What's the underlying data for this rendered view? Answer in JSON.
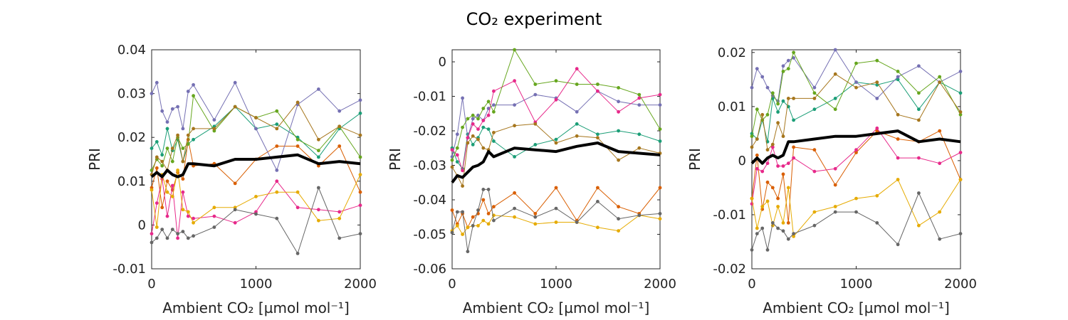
{
  "figure": {
    "title": "CO₂ experiment"
  },
  "chart_data": [
    {
      "type": "line",
      "ylabel": "PRI",
      "xlabel": "Ambient CO₂ [µmol mol⁻¹]",
      "xlim": [
        0,
        2000
      ],
      "ylim": [
        -0.01,
        0.04
      ],
      "xticks": [
        0,
        1000,
        2000
      ],
      "xtick_labels": [
        "0",
        "1000",
        "2000"
      ],
      "yticks": [
        -0.01,
        0,
        0.01,
        0.02,
        0.03,
        0.04
      ],
      "ytick_labels": [
        "-0.01",
        "0",
        "0.01",
        "0.02",
        "0.03",
        "0.04"
      ],
      "x": [
        0,
        50,
        100,
        150,
        200,
        250,
        300,
        350,
        400,
        600,
        800,
        1000,
        1200,
        1400,
        1600,
        1800,
        2000
      ],
      "series": [
        {
          "color": "#1b9e77",
          "values": [
            0.0175,
            0.019,
            0.016,
            0.022,
            0.017,
            0.0195,
            0.0145,
            0.0185,
            0.0195,
            0.0225,
            0.027,
            0.022,
            0.023,
            0.02,
            0.0155,
            0.022,
            0.0255
          ]
        },
        {
          "color": "#d95f02",
          "values": [
            0.0085,
            0.013,
            0.004,
            0.01,
            0.008,
            0.012,
            0.0105,
            0.0195,
            0.0135,
            0.014,
            0.0095,
            0.015,
            0.018,
            0.018,
            0.0135,
            0.018,
            0.0075
          ]
        },
        {
          "color": "#7570b3",
          "values": [
            0.03,
            0.0325,
            0.026,
            0.0235,
            0.0265,
            0.027,
            0.022,
            0.0305,
            0.032,
            0.024,
            0.0325,
            0.022,
            0.0125,
            0.0275,
            0.031,
            0.026,
            0.0285
          ]
        },
        {
          "color": "#e7298a",
          "values": [
            -0.002,
            0.005,
            0.0105,
            0.002,
            0.009,
            -0.003,
            0.0075,
            0.002,
            0.0015,
            0.002,
            0.0005,
            0.003,
            0.01,
            0.004,
            0.0035,
            0.003,
            0.0045
          ]
        },
        {
          "color": "#66a61e",
          "values": [
            0.0125,
            0.015,
            0.0135,
            0.0175,
            0.0145,
            0.02,
            0.0175,
            0.0185,
            0.0295,
            0.0215,
            0.027,
            0.0245,
            0.026,
            0.0195,
            0.017,
            0.0225,
            0.0155
          ]
        },
        {
          "color": "#e6ab02",
          "values": [
            0.008,
            -0.0005,
            0.0115,
            0.0075,
            0.0065,
            0.0125,
            0.0035,
            0.003,
            0.0005,
            0.004,
            0.004,
            0.0065,
            0.0075,
            0.0075,
            0.001,
            0.0015,
            0.0115
          ]
        },
        {
          "color": "#a6761d",
          "values": [
            0.0115,
            0.0155,
            0.0145,
            0.0125,
            0.0175,
            0.0205,
            0.0145,
            0.0205,
            0.022,
            0.022,
            0.027,
            0.0245,
            0.022,
            0.028,
            0.0195,
            0.0225,
            0.0205
          ]
        },
        {
          "color": "#666666",
          "values": [
            -0.004,
            -0.003,
            -0.001,
            -0.003,
            -0.001,
            -0.002,
            -0.0015,
            -0.003,
            -0.0025,
            -0.0005,
            0.0035,
            0.0025,
            0.0015,
            -0.0065,
            0.0085,
            -0.003,
            -0.002
          ]
        },
        {
          "color": "#000000",
          "mean": true,
          "values": [
            0.011,
            0.012,
            0.011,
            0.0125,
            0.0115,
            0.011,
            0.0115,
            0.014,
            0.014,
            0.0135,
            0.015,
            0.015,
            0.0155,
            0.016,
            0.014,
            0.0145,
            0.014
          ]
        }
      ]
    },
    {
      "type": "line",
      "ylabel": "PRI",
      "xlabel": "Ambient CO₂ [µmol mol⁻¹]",
      "xlim": [
        0,
        2000
      ],
      "ylim": [
        -0.06,
        0.0035
      ],
      "xticks": [
        0,
        1000,
        2000
      ],
      "xtick_labels": [
        "0",
        "1000",
        "2000"
      ],
      "yticks": [
        -0.06,
        -0.05,
        -0.04,
        -0.03,
        -0.02,
        -0.01,
        0
      ],
      "ytick_labels": [
        "-0.06",
        "-0.05",
        "-0.04",
        "-0.03",
        "-0.02",
        "-0.01",
        "0"
      ],
      "x": [
        0,
        50,
        100,
        150,
        200,
        250,
        300,
        350,
        400,
        600,
        800,
        1000,
        1200,
        1400,
        1600,
        1800,
        2000
      ],
      "series": [
        {
          "color": "#1b9e77",
          "values": [
            -0.025,
            -0.029,
            -0.031,
            -0.021,
            -0.024,
            -0.022,
            -0.019,
            -0.0195,
            -0.023,
            -0.0275,
            -0.024,
            -0.0225,
            -0.018,
            -0.021,
            -0.02,
            -0.021,
            -0.023
          ]
        },
        {
          "color": "#d95f02",
          "values": [
            -0.043,
            -0.047,
            -0.044,
            -0.048,
            -0.045,
            -0.044,
            -0.04,
            -0.044,
            -0.042,
            -0.038,
            -0.044,
            -0.0365,
            -0.046,
            -0.0365,
            -0.042,
            -0.044,
            -0.0365
          ]
        },
        {
          "color": "#7570b3",
          "values": [
            -0.0275,
            -0.021,
            -0.0105,
            -0.022,
            -0.0165,
            -0.0155,
            -0.017,
            -0.0135,
            -0.0125,
            -0.0125,
            -0.0095,
            -0.0105,
            -0.0145,
            -0.0085,
            -0.0115,
            -0.0125,
            -0.0125
          ]
        },
        {
          "color": "#e7298a",
          "values": [
            -0.0255,
            -0.027,
            -0.0315,
            -0.022,
            -0.018,
            -0.0195,
            -0.017,
            -0.0155,
            -0.0085,
            -0.0055,
            -0.0175,
            -0.011,
            -0.002,
            -0.0085,
            -0.0145,
            -0.0105,
            -0.0095
          ]
        },
        {
          "color": "#66a61e",
          "values": [
            -0.0285,
            -0.025,
            -0.019,
            -0.0165,
            -0.0155,
            -0.0165,
            -0.0135,
            -0.0115,
            -0.0145,
            0.0035,
            -0.0065,
            -0.0055,
            -0.0065,
            -0.0065,
            -0.0075,
            -0.0095,
            -0.0195
          ]
        },
        {
          "color": "#e6ab02",
          "values": [
            -0.049,
            -0.0475,
            -0.05,
            -0.048,
            -0.0475,
            -0.0475,
            -0.046,
            -0.047,
            -0.0445,
            -0.045,
            -0.047,
            -0.0465,
            -0.0465,
            -0.048,
            -0.049,
            -0.0445,
            -0.0455
          ]
        },
        {
          "color": "#a6761d",
          "values": [
            -0.0305,
            -0.033,
            -0.036,
            -0.0235,
            -0.0215,
            -0.0225,
            -0.025,
            -0.0255,
            -0.0205,
            -0.0185,
            -0.018,
            -0.0235,
            -0.0215,
            -0.022,
            -0.0285,
            -0.025,
            -0.0265
          ]
        },
        {
          "color": "#666666",
          "values": [
            -0.0495,
            -0.0435,
            -0.0435,
            -0.055,
            -0.0475,
            -0.043,
            -0.037,
            -0.037,
            -0.046,
            -0.0425,
            -0.045,
            -0.0425,
            -0.0465,
            -0.0405,
            -0.0455,
            -0.0445,
            -0.044
          ]
        },
        {
          "color": "#000000",
          "mean": true,
          "values": [
            -0.035,
            -0.033,
            -0.0335,
            -0.032,
            -0.0305,
            -0.03,
            -0.029,
            -0.026,
            -0.0275,
            -0.025,
            -0.0255,
            -0.026,
            -0.0245,
            -0.0235,
            -0.026,
            -0.0265,
            -0.027
          ]
        }
      ]
    },
    {
      "type": "line",
      "ylabel": "PRI",
      "xlabel": "Ambient CO₂ [µmol mol⁻¹]",
      "xlim": [
        0,
        2000
      ],
      "ylim": [
        -0.02,
        0.0205
      ],
      "xticks": [
        0,
        1000,
        2000
      ],
      "xtick_labels": [
        "0",
        "1000",
        "2000"
      ],
      "yticks": [
        -0.02,
        -0.01,
        0,
        0.01,
        0.02
      ],
      "ytick_labels": [
        "-0.02",
        "-0.01",
        "0",
        "0.01",
        "0.02"
      ],
      "x": [
        0,
        50,
        100,
        150,
        200,
        250,
        300,
        350,
        400,
        600,
        800,
        1000,
        1200,
        1400,
        1600,
        1800,
        2000
      ],
      "series": [
        {
          "color": "#1b9e77",
          "values": [
            0.005,
            0.004,
            0.0075,
            0.0035,
            0.0115,
            0.009,
            0.011,
            0.01,
            0.0075,
            0.0095,
            0.0115,
            0.0145,
            0.014,
            0.015,
            0.0095,
            0.0145,
            0.0125
          ]
        },
        {
          "color": "#d95f02",
          "values": [
            -0.007,
            0.001,
            -0.009,
            -0.004,
            -0.005,
            -0.007,
            -0.0025,
            -0.0115,
            0.0025,
            0.002,
            -0.0045,
            0.0015,
            0.0055,
            0.004,
            0.0035,
            0.0055,
            -0.0035
          ]
        },
        {
          "color": "#7570b3",
          "values": [
            0.0135,
            0.017,
            0.0155,
            0.0135,
            0.012,
            0.011,
            0.0175,
            0.0185,
            0.019,
            0.0135,
            0.0205,
            0.0145,
            0.0115,
            0.0155,
            0.0175,
            0.0145,
            0.0165
          ]
        },
        {
          "color": "#e7298a",
          "values": [
            -0.008,
            -0.0015,
            -0.002,
            -0.0005,
            0.0025,
            -0.001,
            -0.001,
            -0.0005,
            0.0005,
            -0.002,
            -0.0015,
            0.002,
            0.006,
            0.0005,
            0.0005,
            -0.0005,
            0.0015
          ]
        },
        {
          "color": "#66a61e",
          "values": [
            0.0045,
            0.0095,
            0.0075,
            0.0085,
            0.0125,
            0.0105,
            0.0165,
            0.017,
            0.02,
            0.0125,
            0.0095,
            0.018,
            0.0185,
            0.0165,
            0.0125,
            0.0155,
            0.0085
          ]
        },
        {
          "color": "#e6ab02",
          "values": [
            -0.007,
            -0.0125,
            -0.0085,
            -0.0075,
            -0.012,
            -0.0085,
            -0.0115,
            -0.005,
            -0.014,
            -0.0095,
            -0.0085,
            -0.007,
            -0.0065,
            -0.0035,
            -0.012,
            -0.0095,
            -0.0035
          ]
        },
        {
          "color": "#a6761d",
          "values": [
            0.0025,
            0.004,
            0.0085,
            0.002,
            0.003,
            0.007,
            0.0045,
            0.0115,
            0.0115,
            0.0115,
            0.016,
            0.0135,
            0.0145,
            0.0085,
            0.0075,
            0.0145,
            0.009
          ]
        },
        {
          "color": "#666666",
          "values": [
            -0.0165,
            -0.0135,
            -0.0125,
            -0.0165,
            -0.0115,
            -0.0125,
            -0.013,
            -0.0145,
            -0.0135,
            -0.012,
            -0.0095,
            -0.0095,
            -0.0115,
            -0.0155,
            -0.006,
            -0.0145,
            -0.0135
          ]
        },
        {
          "color": "#000000",
          "mean": true,
          "values": [
            -0.0005,
            0.0005,
            -0.0005,
            0.0005,
            0.001,
            0.0005,
            0.001,
            0.0035,
            0.0035,
            0.004,
            0.0045,
            0.0045,
            0.005,
            0.0055,
            0.0035,
            0.004,
            0.0035
          ]
        }
      ]
    }
  ]
}
